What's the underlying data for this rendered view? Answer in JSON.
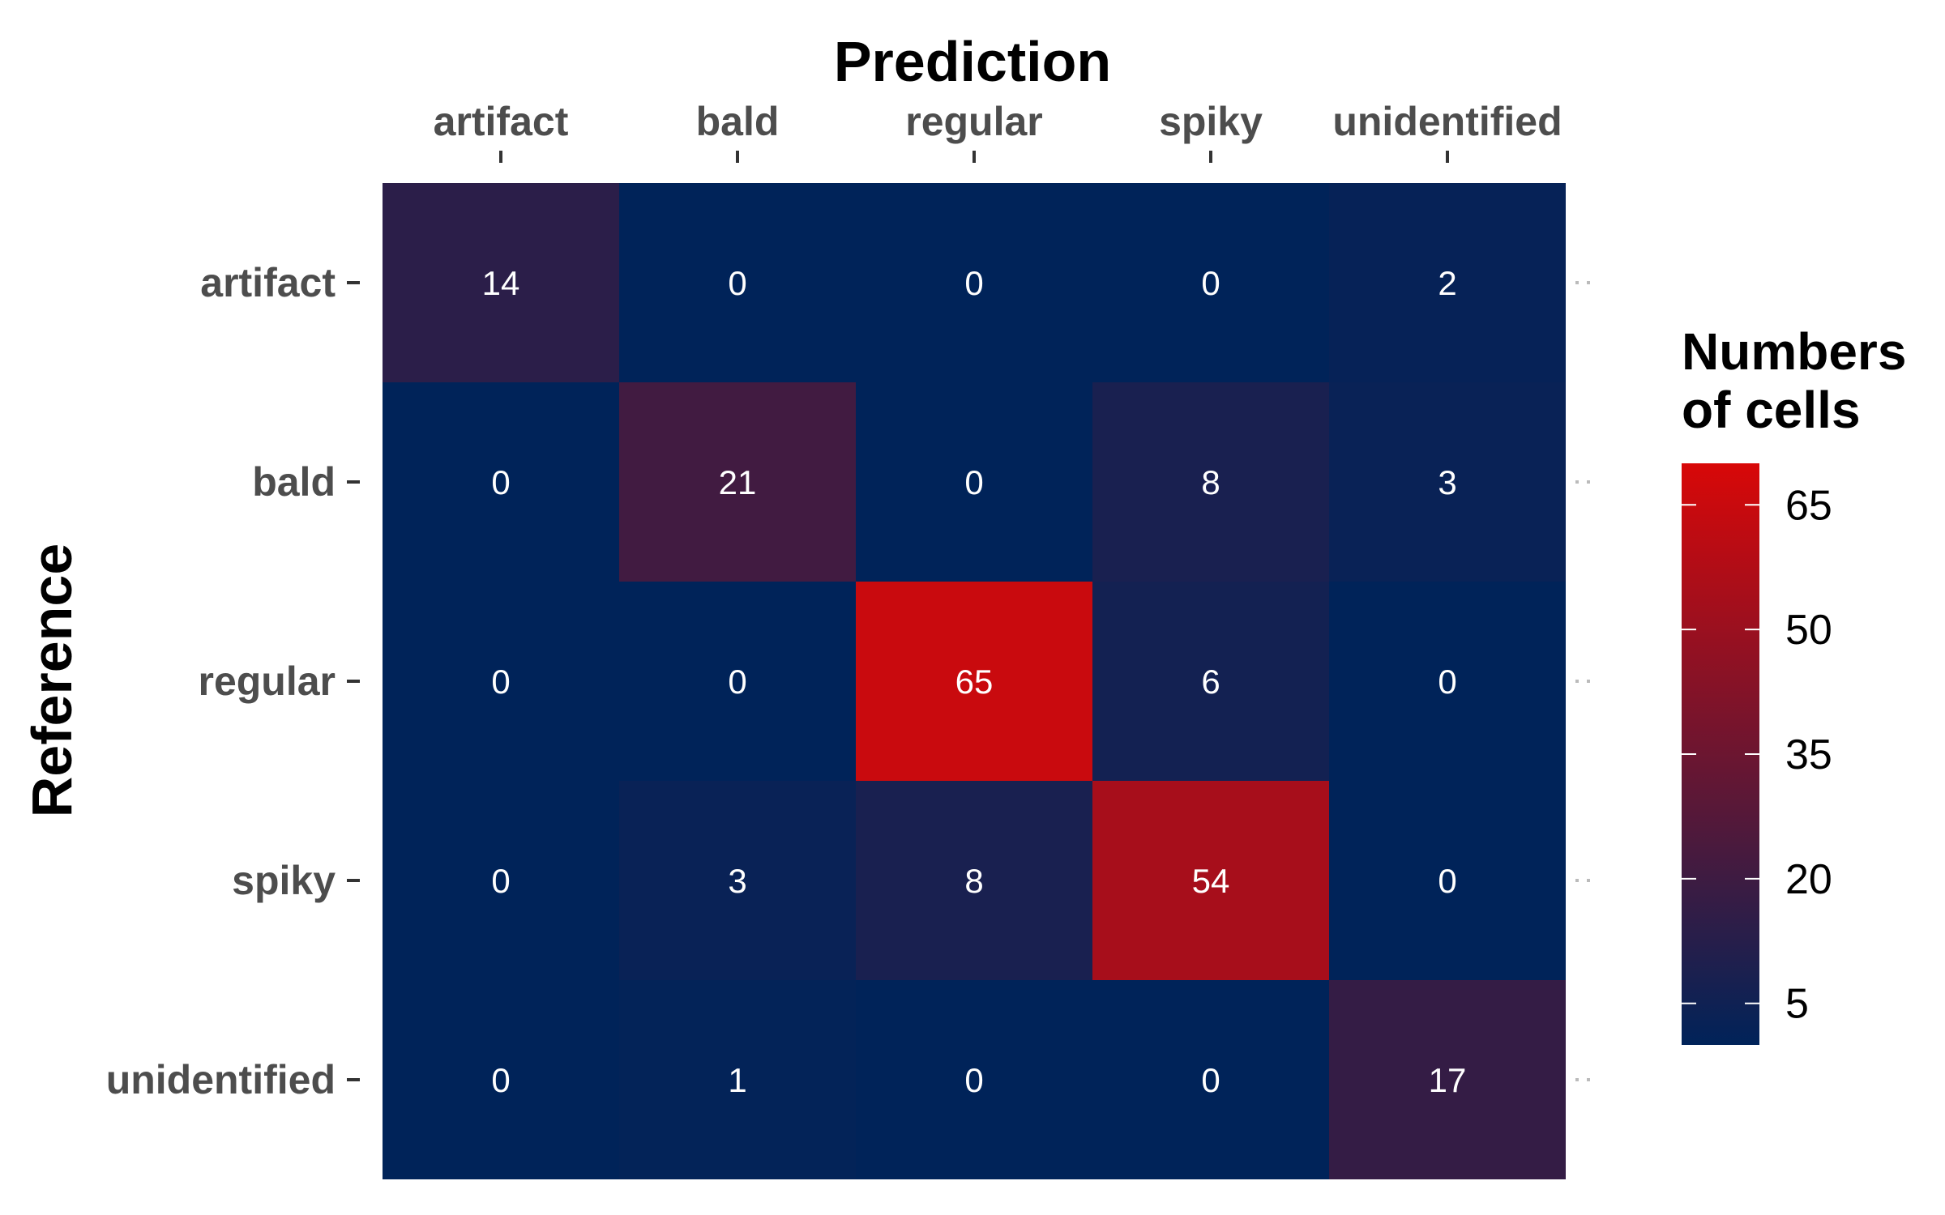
{
  "chart_data": {
    "type": "heatmap",
    "title": "",
    "xlabel": "Prediction",
    "ylabel": "Reference",
    "x_categories": [
      "artifact",
      "bald",
      "regular",
      "spiky",
      "unidentified"
    ],
    "y_categories": [
      "artifact",
      "bald",
      "regular",
      "spiky",
      "unidentified"
    ],
    "x_axis_position": "top",
    "values": [
      [
        14,
        0,
        0,
        0,
        2
      ],
      [
        0,
        21,
        0,
        8,
        3
      ],
      [
        0,
        0,
        65,
        6,
        0
      ],
      [
        0,
        3,
        8,
        54,
        0
      ],
      [
        0,
        1,
        0,
        0,
        17
      ]
    ],
    "grid": false,
    "legend": {
      "title": "Numbers of cells",
      "title_lines": [
        "Numbers",
        "of cells"
      ],
      "placement": "right",
      "ticks": [
        5,
        20,
        35,
        50,
        65
      ],
      "range": [
        0,
        70
      ],
      "low_color": "#002359",
      "high_color": "#d80808"
    }
  }
}
